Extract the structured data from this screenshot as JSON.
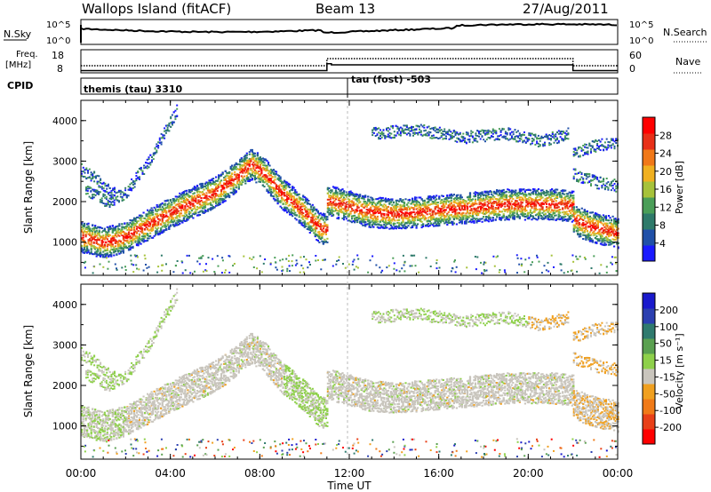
{
  "header": {
    "title": "Wallops Island (fitACF)",
    "beam": "Beam 13",
    "date": "27/Aug/2011"
  },
  "noise_panel": {
    "left_label": "N.Sky",
    "left_ticks": [
      "10^5",
      "10^0"
    ],
    "right_label": "N.Search",
    "right_ticks": [
      "10^5",
      "10^0"
    ]
  },
  "freq_panel": {
    "left_label_line1": "Freq.",
    "left_label_line2": "[MHz]",
    "left_ticks": [
      "18",
      "8"
    ],
    "right_label": "Nave",
    "right_ticks": [
      "60",
      "0"
    ]
  },
  "cpid_panel": {
    "label": "CPID",
    "modes": [
      "themis (tau) 3310",
      "tau (fost) -503"
    ]
  },
  "power_panel": {
    "ylabel": "Slant Range [km]",
    "yticks": [
      "1000",
      "2000",
      "3000",
      "4000"
    ],
    "colorbar_label": "Power [dB]",
    "colorbar_ticks": [
      "4",
      "8",
      "12",
      "16",
      "20",
      "24",
      "28"
    ]
  },
  "velocity_panel": {
    "ylabel": "Slant Range [km]",
    "yticks": [
      "1000",
      "2000",
      "3000",
      "4000"
    ],
    "colorbar_label": "Velocity [m s⁻¹]",
    "colorbar_ticks": [
      "200",
      "100",
      "50",
      "15",
      "-15",
      "-50",
      "-100",
      "-200"
    ]
  },
  "xaxis": {
    "label": "Time UT",
    "ticks": [
      "00:00",
      "04:00",
      "08:00",
      "12:00",
      "16:00",
      "20:00",
      "00:00"
    ]
  },
  "colors": {
    "power_scale": [
      "#1a1aff",
      "#2050a8",
      "#2e7a6a",
      "#4a9e58",
      "#a6c23a",
      "#f0b020",
      "#f07818",
      "#e83018",
      "#ff0000"
    ],
    "velocity_scale": [
      "#1a1acc",
      "#2b3fb0",
      "#2f7a6e",
      "#5aa050",
      "#8ed04a",
      "#c9c5bd",
      "#f0a020",
      "#f07a18",
      "#e84018",
      "#ff0000"
    ]
  },
  "chart_data": {
    "type": "heatmap",
    "x_range_hours": [
      0,
      24
    ],
    "y_range_km": [
      180,
      4500
    ],
    "frequency_mhz": [
      {
        "start_h": 0,
        "end_h": 11.0,
        "value": 10.5
      },
      {
        "start_h": 11.0,
        "end_h": 11.2,
        "value": 13.5
      },
      {
        "start_h": 11.2,
        "end_h": 22.0,
        "value": 13.0
      },
      {
        "start_h": 22.0,
        "end_h": 24,
        "value": 10.5
      }
    ],
    "power_bands": [
      {
        "name": "main",
        "points": [
          [
            0.0,
            1150
          ],
          [
            1.0,
            1000
          ],
          [
            2.0,
            1150
          ],
          [
            3.0,
            1450
          ],
          [
            4.0,
            1750
          ],
          [
            5.0,
            2000
          ],
          [
            6.0,
            2250
          ],
          [
            7.0,
            2650
          ],
          [
            7.6,
            2950
          ],
          [
            8.2,
            2700
          ],
          [
            9.0,
            2200
          ],
          [
            10.0,
            1750
          ],
          [
            10.6,
            1400
          ],
          [
            11.0,
            1300
          ]
        ]
      },
      {
        "name": "afternoon",
        "points": [
          [
            11.0,
            2050
          ],
          [
            12.0,
            1900
          ],
          [
            13.0,
            1750
          ],
          [
            14.0,
            1720
          ],
          [
            15.0,
            1750
          ],
          [
            16.0,
            1800
          ],
          [
            17.0,
            1850
          ],
          [
            18.0,
            1900
          ],
          [
            19.0,
            1950
          ],
          [
            20.0,
            1950
          ],
          [
            21.0,
            1950
          ],
          [
            22.0,
            1900
          ]
        ]
      },
      {
        "name": "late-lower",
        "points": [
          [
            22.0,
            1600
          ],
          [
            22.5,
            1450
          ],
          [
            23.5,
            1300
          ],
          [
            24.0,
            1250
          ]
        ]
      }
    ]
  }
}
